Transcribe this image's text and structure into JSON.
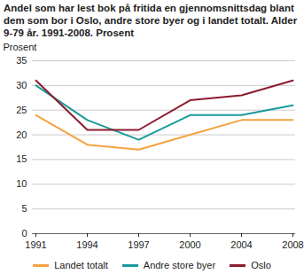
{
  "chart_data": {
    "type": "line",
    "title": "Andel som har lest bok på fritida en gjennomsnittsdag blant dem som bor i Oslo, andre store byer og i landet totalt. Alder 9-79 år. 1991-2008. Prosent",
    "ylabel": "Prosent",
    "categories": [
      "1991",
      "1994",
      "1997",
      "2000",
      "2004",
      "2008"
    ],
    "series": [
      {
        "name": "Landet totalt",
        "color": "#f4a340",
        "values": [
          24,
          18,
          17,
          20,
          23,
          23
        ]
      },
      {
        "name": "Andre store byer",
        "color": "#1b9a9b",
        "values": [
          30,
          23,
          19,
          24,
          24,
          26
        ]
      },
      {
        "name": "Oslo",
        "color": "#8c1c2e",
        "values": [
          31,
          21,
          21,
          27,
          28,
          31
        ]
      }
    ],
    "ylim": [
      0,
      35
    ],
    "yticks": [
      0,
      5,
      10,
      15,
      20,
      25,
      30,
      35
    ],
    "grid": true,
    "legend": "bottom"
  }
}
